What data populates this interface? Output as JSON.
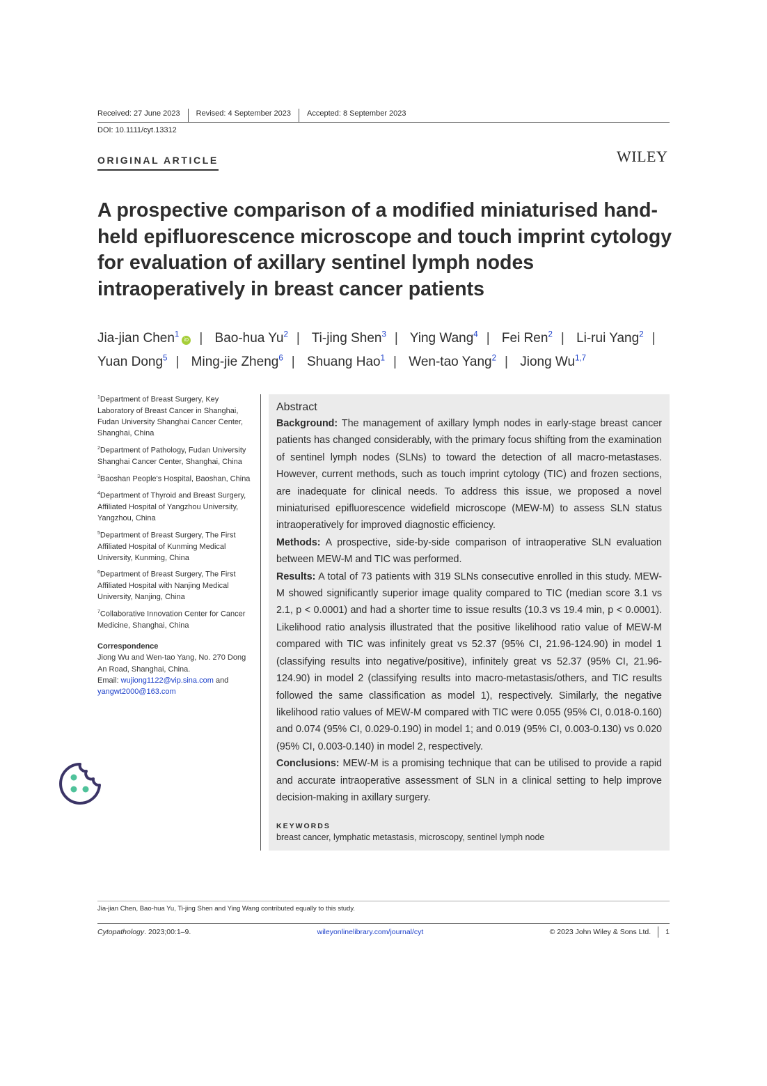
{
  "header": {
    "received": "Received: 27 June 2023",
    "revised": "Revised: 4 September 2023",
    "accepted": "Accepted: 8 September 2023",
    "doi": "DOI: 10.1111/cyt.13312",
    "article_type": "ORIGINAL ARTICLE",
    "publisher": "WILEY"
  },
  "title": "A prospective comparison of a modified miniaturised hand-held epifluorescence microscope and touch imprint cytology for evaluation of axillary sentinel lymph nodes intraoperatively in breast cancer patients",
  "authors": [
    {
      "name": "Jia-jian Chen",
      "sup": "1",
      "orcid": true
    },
    {
      "name": "Bao-hua Yu",
      "sup": "2"
    },
    {
      "name": "Ti-jing Shen",
      "sup": "3"
    },
    {
      "name": "Ying Wang",
      "sup": "4"
    },
    {
      "name": "Fei Ren",
      "sup": "2"
    },
    {
      "name": "Li-rui Yang",
      "sup": "2"
    },
    {
      "name": "Yuan Dong",
      "sup": "5"
    },
    {
      "name": "Ming-jie Zheng",
      "sup": "6"
    },
    {
      "name": "Shuang Hao",
      "sup": "1"
    },
    {
      "name": "Wen-tao Yang",
      "sup": "2"
    },
    {
      "name": "Jiong Wu",
      "sup": "1,7"
    }
  ],
  "affiliations": [
    {
      "num": "1",
      "text": "Department of Breast Surgery, Key Laboratory of Breast Cancer in Shanghai, Fudan University Shanghai Cancer Center, Shanghai, China"
    },
    {
      "num": "2",
      "text": "Department of Pathology, Fudan University Shanghai Cancer Center, Shanghai, China"
    },
    {
      "num": "3",
      "text": "Baoshan People's Hospital, Baoshan, China"
    },
    {
      "num": "4",
      "text": "Department of Thyroid and Breast Surgery, Affiliated Hospital of Yangzhou University, Yangzhou, China"
    },
    {
      "num": "5",
      "text": "Department of Breast Surgery, The First Affiliated Hospital of Kunming Medical University, Kunming, China"
    },
    {
      "num": "6",
      "text": "Department of Breast Surgery, The First Affiliated Hospital with Nanjing Medical University, Nanjing, China"
    },
    {
      "num": "7",
      "text": "Collaborative Innovation Center for Cancer Medicine, Shanghai, China"
    }
  ],
  "correspondence": {
    "heading": "Correspondence",
    "text": "Jiong Wu and Wen-tao Yang, No. 270 Dong An Road, Shanghai, China.",
    "email_label": "Email: ",
    "email1": "wujiong1122@vip.sina.com",
    "and": " and ",
    "email2": "yangwt2000@163.com"
  },
  "abstract": {
    "heading": "Abstract",
    "sections": [
      {
        "label": "Background:",
        "text": " The management of axillary lymph nodes in early-stage breast cancer patients has changed considerably, with the primary focus shifting from the examination of sentinel lymph nodes (SLNs) to toward the detection of all macro-metastases. However, current methods, such as touch imprint cytology (TIC) and frozen sections, are inadequate for clinical needs. To address this issue, we proposed a novel miniaturised epifluorescence widefield microscope (MEW-M) to assess SLN status intraoperatively for improved diagnostic efficiency."
      },
      {
        "label": "Methods:",
        "text": " A prospective, side-by-side comparison of intraoperative SLN evaluation between MEW-M and TIC was performed."
      },
      {
        "label": "Results:",
        "text": " A total of 73 patients with 319 SLNs consecutive enrolled in this study. MEW-M showed significantly superior image quality compared to TIC (median score 3.1 vs 2.1, p < 0.0001) and had a shorter time to issue results (10.3 vs 19.4 min, p < 0.0001). Likelihood ratio analysis illustrated that the positive likelihood ratio value of MEW-M compared with TIC was infinitely great vs 52.37 (95% CI, 21.96-124.90) in model 1 (classifying results into negative/positive), infinitely great vs 52.37 (95% CI, 21.96-124.90) in model 2 (classifying results into macro-metastasis/others, and TIC results followed the same classification as model 1), respectively. Similarly, the negative likelihood ratio values of MEW-M compared with TIC were 0.055 (95% CI, 0.018-0.160) and 0.074 (95% CI, 0.029-0.190) in model 1; and 0.019 (95% CI, 0.003-0.130) vs 0.020 (95% CI, 0.003-0.140) in model 2, respectively."
      },
      {
        "label": "Conclusions:",
        "text": " MEW-M is a promising technique that can be utilised to provide a rapid and accurate intraoperative assessment of SLN in a clinical setting to help improve decision-making in axillary surgery."
      }
    ],
    "keywords_heading": "KEYWORDS",
    "keywords": "breast cancer, lymphatic metastasis, microscopy, sentinel lymph node"
  },
  "footnote": "Jia-jian Chen, Bao-hua Yu, Ti-jing Shen and Ying Wang contributed equally to this study.",
  "footer": {
    "journal": "Cytopathology",
    "citation": ". 2023;00:1–9.",
    "url": "wileyonlinelibrary.com/journal/cyt",
    "copyright": "© 2023 John Wiley & Sons Ltd.",
    "page": "1"
  },
  "icons": {
    "cookie": "cookie-settings-icon",
    "orcid": "orcid-icon"
  },
  "colors": {
    "link": "#1a3ec9",
    "abstract_bg": "#ebebeb",
    "cookie": "#3b3466",
    "cookie_dots": "#4fc29a"
  }
}
